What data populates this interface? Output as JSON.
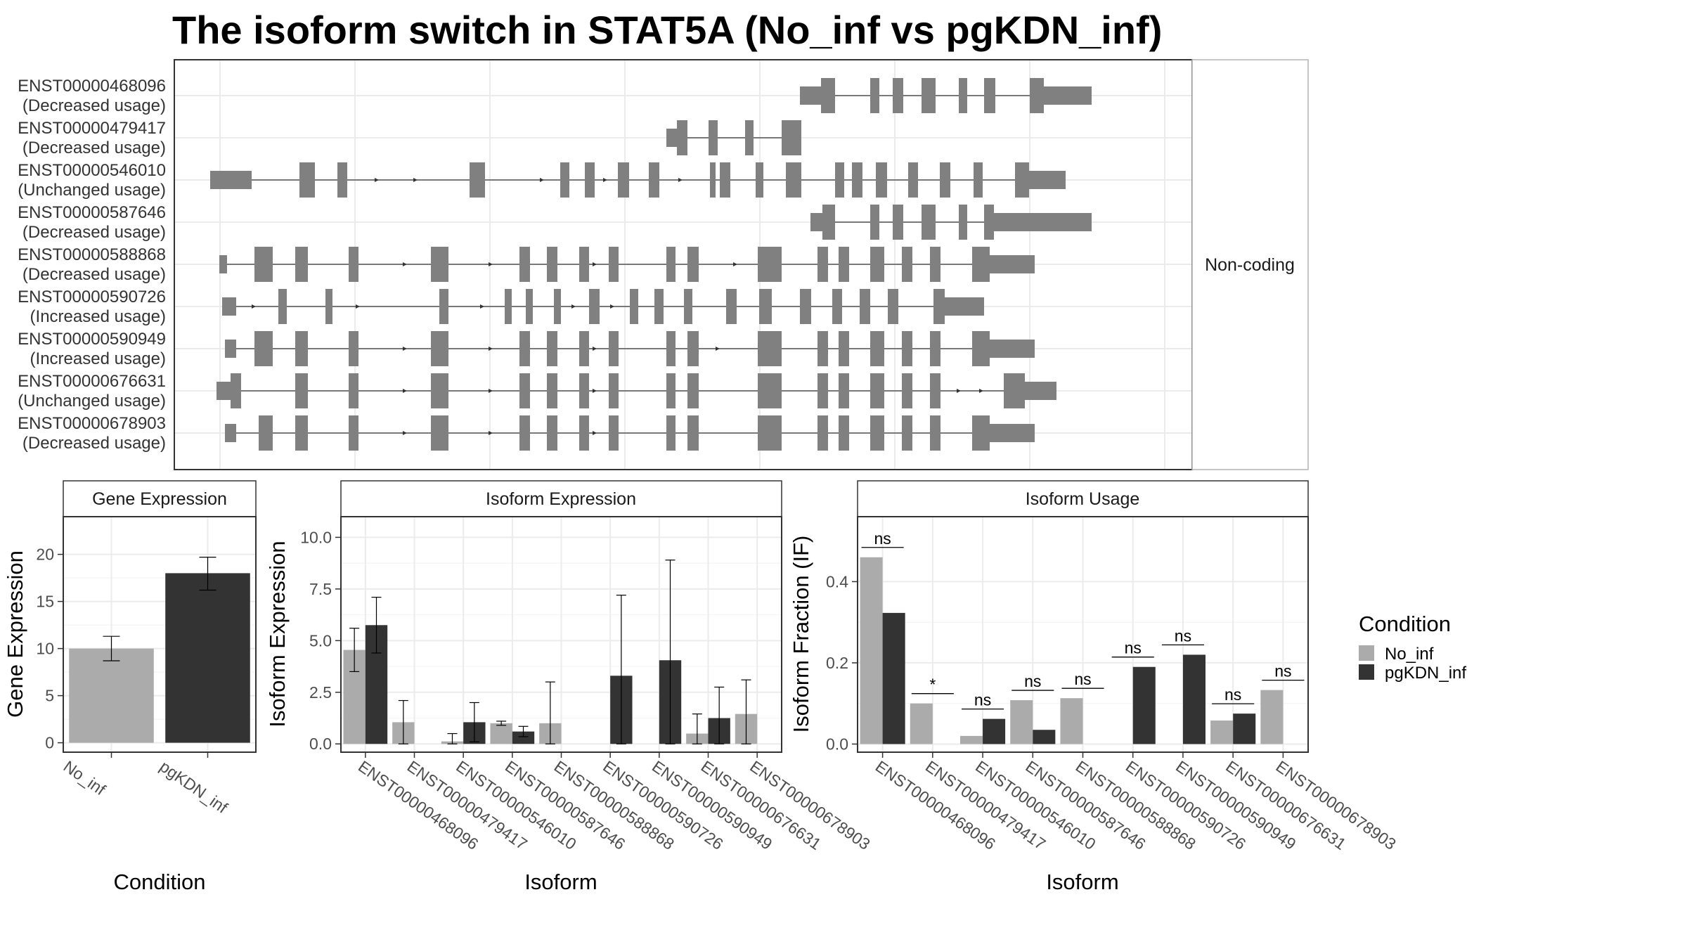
{
  "title": "The isoform switch in STAT5A (No_inf vs pgKDN_inf)",
  "colors": {
    "No_inf": "#ABABAB",
    "pgKDN_inf": "#333333",
    "exon": "#808080",
    "grid": "#EBEBEB"
  },
  "chart_data": [
    {
      "type": "gene-structure",
      "facet_label": "Non-coding",
      "isoforms": [
        {
          "id": "ENST00000468096",
          "usage": "(Decreased usage)",
          "exons": [
            [
              890,
              920,
              0.6
            ],
            [
              920,
              940,
              1.0
            ],
            [
              990,
              1003,
              1.0
            ],
            [
              1022,
              1037,
              1.0
            ],
            [
              1063,
              1083,
              1.0
            ],
            [
              1116,
              1128,
              1.0
            ],
            [
              1152,
              1168,
              1.0
            ],
            [
              1217,
              1237,
              1.0
            ],
            [
              1237,
              1305,
              0.6
            ]
          ],
          "arrows": []
        },
        {
          "id": "ENST00000479417",
          "usage": "(Decreased usage)",
          "exons": [
            [
              700,
              715,
              0.6
            ],
            [
              715,
              730,
              1.0
            ],
            [
              760,
              773,
              1.0
            ],
            [
              812,
              824,
              1.0
            ],
            [
              864,
              892,
              1.0
            ]
          ],
          "arrows": []
        },
        {
          "id": "ENST00000546010",
          "usage": "(Unchanged usage)",
          "exons": [
            [
              51,
              110,
              0.6
            ],
            [
              178,
              200,
              1.0
            ],
            [
              232,
              246,
              1.0
            ],
            [
              420,
              442,
              1.0
            ],
            [
              549,
              562,
              1.0
            ],
            [
              584,
              598,
              1.0
            ],
            [
              631,
              647,
              1.0
            ],
            [
              675,
              690,
              1.0
            ],
            [
              762,
              770,
              1.0
            ],
            [
              776,
              791,
              1.0
            ],
            [
              827,
              838,
              1.0
            ],
            [
              870,
              892,
              1.0
            ],
            [
              940,
              953,
              1.0
            ],
            [
              964,
              979,
              1.0
            ],
            [
              998,
              1014,
              1.0
            ],
            [
              1044,
              1058,
              1.0
            ],
            [
              1089,
              1104,
              1.0
            ],
            [
              1137,
              1150,
              1.0
            ],
            [
              1196,
              1216,
              1.0
            ],
            [
              1216,
              1268,
              0.6
            ]
          ],
          "arrows": [
            290,
            345,
            525,
            615,
            722
          ]
        },
        {
          "id": "ENST00000587646",
          "usage": "(Decreased usage)",
          "exons": [
            [
              905,
              922,
              0.6
            ],
            [
              922,
              940,
              1.0
            ],
            [
              990,
              1003,
              1.0
            ],
            [
              1022,
              1037,
              1.0
            ],
            [
              1063,
              1083,
              1.0
            ],
            [
              1116,
              1128,
              1.0
            ],
            [
              1152,
              1166,
              1.0
            ],
            [
              1166,
              1305,
              0.6
            ]
          ],
          "arrows": []
        },
        {
          "id": "ENST00000588868",
          "usage": "(Decreased usage)",
          "exons": [
            [
              64,
              75,
              0.6
            ],
            [
              114,
              140,
              1.0
            ],
            [
              172,
              190,
              1.0
            ],
            [
              248,
              262,
              1.0
            ],
            [
              365,
              390,
              1.0
            ],
            [
              491,
              506,
              1.0
            ],
            [
              530,
              545,
              1.0
            ],
            [
              576,
              590,
              1.0
            ],
            [
              618,
              632,
              1.0
            ],
            [
              700,
              713,
              1.0
            ],
            [
              730,
              746,
              1.0
            ],
            [
              830,
              864,
              1.0
            ],
            [
              915,
              930,
              1.0
            ],
            [
              945,
              960,
              1.0
            ],
            [
              990,
              1010,
              1.0
            ],
            [
              1035,
              1050,
              1.0
            ],
            [
              1075,
              1090,
              1.0
            ],
            [
              1135,
              1160,
              1.0
            ],
            [
              1160,
              1224,
              0.6
            ]
          ],
          "arrows": [
            330,
            452,
            600,
            708,
            800
          ]
        },
        {
          "id": "ENST00000590726",
          "usage": "(Increased usage)",
          "exons": [
            [
              68,
              88,
              0.6
            ],
            [
              148,
              160,
              1.0
            ],
            [
              215,
              225,
              1.0
            ],
            [
              377,
              390,
              1.0
            ],
            [
              470,
              480,
              1.0
            ],
            [
              500,
              510,
              1.0
            ],
            [
              540,
              550,
              1.0
            ],
            [
              590,
              605,
              1.0
            ],
            [
              648,
              660,
              1.0
            ],
            [
              683,
              696,
              1.0
            ],
            [
              725,
              737,
              1.0
            ],
            [
              785,
              800,
              1.0
            ],
            [
              832,
              850,
              1.0
            ],
            [
              890,
              906,
              1.0
            ],
            [
              936,
              950,
              1.0
            ],
            [
              975,
              990,
              1.0
            ],
            [
              1015,
              1030,
              1.0
            ],
            [
              1080,
              1096,
              1.0
            ],
            [
              1096,
              1152,
              0.6
            ]
          ],
          "arrows": [
            115,
            263,
            440,
            570,
            625
          ]
        },
        {
          "id": "ENST00000590949",
          "usage": "(Increased usage)",
          "exons": [
            [
              72,
              88,
              0.6
            ],
            [
              114,
              140,
              1.0
            ],
            [
              172,
              190,
              1.0
            ],
            [
              248,
              262,
              1.0
            ],
            [
              365,
              390,
              1.0
            ],
            [
              491,
              506,
              1.0
            ],
            [
              530,
              545,
              1.0
            ],
            [
              576,
              590,
              1.0
            ],
            [
              618,
              632,
              1.0
            ],
            [
              700,
              713,
              1.0
            ],
            [
              730,
              746,
              1.0
            ],
            [
              830,
              864,
              1.0
            ],
            [
              915,
              930,
              1.0
            ],
            [
              945,
              960,
              1.0
            ],
            [
              990,
              1010,
              1.0
            ],
            [
              1035,
              1050,
              1.0
            ],
            [
              1075,
              1090,
              1.0
            ],
            [
              1135,
              1160,
              1.0
            ],
            [
              1160,
              1224,
              0.6
            ]
          ],
          "arrows": [
            330,
            452,
            600,
            775
          ]
        },
        {
          "id": "ENST00000676631",
          "usage": "(Unchanged usage)",
          "exons": [
            [
              60,
              80,
              0.6
            ],
            [
              80,
              95,
              1.0
            ],
            [
              172,
              190,
              1.0
            ],
            [
              248,
              262,
              1.0
            ],
            [
              365,
              390,
              1.0
            ],
            [
              491,
              506,
              1.0
            ],
            [
              530,
              545,
              1.0
            ],
            [
              576,
              590,
              1.0
            ],
            [
              618,
              632,
              1.0
            ],
            [
              700,
              713,
              1.0
            ],
            [
              730,
              746,
              1.0
            ],
            [
              830,
              864,
              1.0
            ],
            [
              915,
              930,
              1.0
            ],
            [
              945,
              960,
              1.0
            ],
            [
              990,
              1010,
              1.0
            ],
            [
              1035,
              1050,
              1.0
            ],
            [
              1075,
              1090,
              1.0
            ],
            [
              1180,
              1210,
              1.0
            ],
            [
              1210,
              1255,
              0.6
            ]
          ],
          "arrows": [
            330,
            452,
            600,
            1118,
            1150
          ]
        },
        {
          "id": "ENST00000678903",
          "usage": "(Decreased usage)",
          "exons": [
            [
              72,
              88,
              0.6
            ],
            [
              120,
              140,
              1.0
            ],
            [
              172,
              190,
              1.0
            ],
            [
              248,
              262,
              1.0
            ],
            [
              365,
              390,
              1.0
            ],
            [
              491,
              506,
              1.0
            ],
            [
              530,
              545,
              1.0
            ],
            [
              576,
              590,
              1.0
            ],
            [
              618,
              632,
              1.0
            ],
            [
              700,
              713,
              1.0
            ],
            [
              730,
              746,
              1.0
            ],
            [
              830,
              864,
              1.0
            ],
            [
              915,
              930,
              1.0
            ],
            [
              945,
              960,
              1.0
            ],
            [
              990,
              1010,
              1.0
            ],
            [
              1035,
              1050,
              1.0
            ],
            [
              1075,
              1090,
              1.0
            ],
            [
              1135,
              1160,
              1.0
            ],
            [
              1160,
              1224,
              0.6
            ]
          ],
          "arrows": [
            330,
            452,
            600
          ]
        }
      ]
    },
    {
      "type": "bar",
      "strip": "Gene Expression",
      "xlabel": "Condition",
      "ylabel": "Gene Expression",
      "ylim": [
        -1,
        24
      ],
      "yticks": [
        0,
        5,
        10,
        15,
        20
      ],
      "categories": [
        "No_inf",
        "pgKDN_inf"
      ],
      "values": [
        10.0,
        18.0
      ],
      "errors": [
        [
          8.7,
          11.3
        ],
        [
          16.2,
          19.7
        ]
      ]
    },
    {
      "type": "bar",
      "strip": "Isoform Expression",
      "xlabel": "Isoform",
      "ylabel": "Isoform Expression",
      "ylim": [
        -0.4,
        11.0
      ],
      "yticks": [
        "0.0",
        "2.5",
        "5.0",
        "7.5",
        "10.0"
      ],
      "categories": [
        "ENST00000468096",
        "ENST00000479417",
        "ENST00000546010",
        "ENST00000587646",
        "ENST00000588868",
        "ENST00000590726",
        "ENST00000590949",
        "ENST00000676631",
        "ENST00000678903"
      ],
      "series": [
        {
          "name": "No_inf",
          "values": [
            4.55,
            1.05,
            0.12,
            1.0,
            1.0,
            0.0,
            0.0,
            0.5,
            1.45
          ],
          "errors": [
            [
              3.5,
              5.6
            ],
            [
              0.0,
              2.1
            ],
            [
              0.0,
              0.5
            ],
            [
              0.9,
              1.1
            ],
            [
              0.0,
              3.0
            ],
            null,
            null,
            [
              0.0,
              1.45
            ],
            [
              0.0,
              3.1
            ]
          ]
        },
        {
          "name": "pgKDN_inf",
          "values": [
            5.75,
            0.0,
            1.05,
            0.6,
            0.0,
            3.3,
            4.05,
            1.25,
            0.0
          ],
          "errors": [
            [
              4.4,
              7.1
            ],
            null,
            [
              0.1,
              2.0
            ],
            [
              0.35,
              0.85
            ],
            null,
            [
              0.0,
              7.2
            ],
            [
              0.0,
              8.9
            ],
            [
              0.0,
              2.75
            ],
            null
          ]
        }
      ]
    },
    {
      "type": "bar",
      "strip": "Isoform Usage",
      "xlabel": "Isoform",
      "ylabel": "Isoform Fraction (IF)",
      "ylim": [
        -0.02,
        0.56
      ],
      "yticks": [
        "0.0",
        "0.2",
        "0.4"
      ],
      "categories": [
        "ENST00000468096",
        "ENST00000479417",
        "ENST00000546010",
        "ENST00000587646",
        "ENST00000588868",
        "ENST00000590726",
        "ENST00000590949",
        "ENST00000676631",
        "ENST00000678903"
      ],
      "series": [
        {
          "name": "No_inf",
          "values": [
            0.46,
            0.1,
            0.02,
            0.108,
            0.113,
            0.0,
            0.0,
            0.058,
            0.133
          ]
        },
        {
          "name": "pgKDN_inf",
          "values": [
            0.323,
            0.0,
            0.062,
            0.035,
            0.0,
            0.19,
            0.22,
            0.075,
            0.0
          ]
        }
      ],
      "annotations": [
        "ns",
        "*",
        "ns",
        "ns",
        "ns",
        "ns",
        "ns",
        "ns",
        "ns"
      ]
    }
  ],
  "legend": {
    "title": "Condition",
    "entries": [
      {
        "label": "No_inf",
        "color": "#ABABAB"
      },
      {
        "label": "pgKDN_inf",
        "color": "#333333"
      }
    ]
  }
}
